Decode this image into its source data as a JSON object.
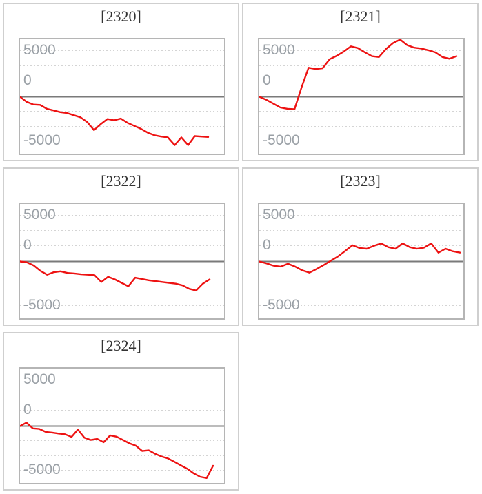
{
  "page": {
    "background": "#ffffff"
  },
  "colors": {
    "series_line": "#ed1212",
    "zero_line": "#7a7a7a",
    "gridline": "#d4d4d4",
    "plot_border": "#b5b5b5",
    "card_border": "#cfcfcf",
    "title_text": "#333333",
    "tick_text": "#9aa0a6"
  },
  "axis": {
    "y_tick_labels": [
      "5000",
      "0",
      "-5000"
    ]
  },
  "chart_data": [
    {
      "type": "line",
      "title": "[2320]",
      "xlabel": "",
      "ylabel": "",
      "y_ticks": [
        5000,
        0,
        -5000
      ],
      "ylim": [
        -6700,
        6700
      ],
      "grid": "horizontal-dashed",
      "legend": "none",
      "x_end": 273,
      "values": [
        0,
        -600,
        -900,
        -950,
        -1400,
        -1600,
        -1800,
        -1900,
        -2150,
        -2400,
        -2950,
        -3900,
        -3200,
        -2600,
        -2750,
        -2550,
        -3050,
        -3400,
        -3750,
        -4200,
        -4500,
        -4650,
        -4750,
        -5650,
        -4750,
        -5650,
        -4600,
        -4650,
        -4700
      ]
    },
    {
      "type": "line",
      "title": "[2321]",
      "xlabel": "",
      "ylabel": "",
      "y_ticks": [
        5000,
        0,
        -5000
      ],
      "ylim": [
        -6700,
        6700
      ],
      "grid": "horizontal-dashed",
      "legend": "none",
      "x_end": 286,
      "values": [
        0,
        -350,
        -800,
        -1250,
        -1400,
        -1450,
        1100,
        3400,
        3250,
        3350,
        4400,
        4800,
        5300,
        5900,
        5700,
        5200,
        4750,
        4650,
        5600,
        6300,
        6700,
        6050,
        5750,
        5650,
        5450,
        5200,
        4650,
        4450,
        4750
      ]
    },
    {
      "type": "line",
      "title": "[2322]",
      "xlabel": "",
      "ylabel": "",
      "y_ticks": [
        5000,
        0,
        -5000
      ],
      "ylim": [
        -6700,
        6700
      ],
      "grid": "horizontal-dashed",
      "legend": "none",
      "x_end": 275,
      "values": [
        0,
        -100,
        -450,
        -1100,
        -1550,
        -1250,
        -1150,
        -1350,
        -1400,
        -1500,
        -1550,
        -1600,
        -2400,
        -1800,
        -2100,
        -2500,
        -2900,
        -1900,
        -2050,
        -2200,
        -2300,
        -2400,
        -2500,
        -2600,
        -2800,
        -3200,
        -3400,
        -2600,
        -2100
      ]
    },
    {
      "type": "line",
      "title": "[2323]",
      "xlabel": "",
      "ylabel": "",
      "y_ticks": [
        5000,
        0,
        -5000
      ],
      "ylim": [
        -6700,
        6700
      ],
      "grid": "horizontal-dashed",
      "legend": "none",
      "x_end": 291,
      "values": [
        0,
        -220,
        -490,
        -600,
        -270,
        -600,
        -1040,
        -1310,
        -880,
        -410,
        100,
        600,
        1230,
        1900,
        1570,
        1490,
        1840,
        2120,
        1680,
        1490,
        2120,
        1680,
        1490,
        1620,
        2120,
        1030,
        1490,
        1190,
        1040
      ]
    },
    {
      "type": "line",
      "title": "[2324]",
      "xlabel": "",
      "ylabel": "",
      "y_ticks": [
        5000,
        0,
        -5000
      ],
      "ylim": [
        -6700,
        6700
      ],
      "grid": "horizontal-dashed",
      "legend": "none",
      "x_end": 280,
      "values": [
        0,
        400,
        -270,
        -330,
        -680,
        -760,
        -870,
        -950,
        -1270,
        -400,
        -1350,
        -1620,
        -1490,
        -1890,
        -1080,
        -1230,
        -1620,
        -2020,
        -2290,
        -2910,
        -2830,
        -3240,
        -3560,
        -3780,
        -4180,
        -4590,
        -4990,
        -5530,
        -5930,
        -6070,
        -4640
      ]
    }
  ]
}
